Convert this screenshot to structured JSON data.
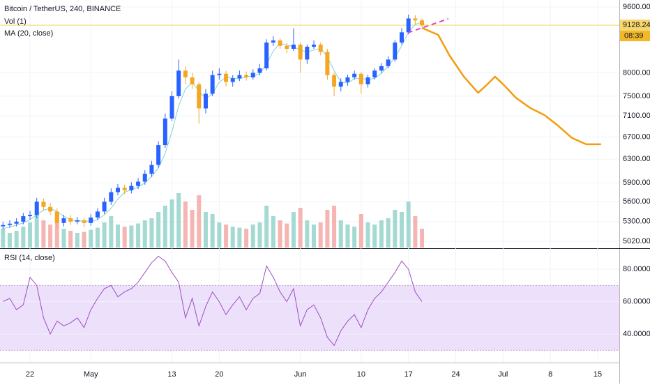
{
  "chart_data": {
    "type": "candlestick",
    "title": "Bitcoin / TetherUS, 240, BINANCE",
    "x": [
      108,
      109,
      110,
      111,
      112,
      113,
      114,
      115,
      116,
      117,
      118,
      119,
      120,
      121,
      122,
      123,
      124,
      125,
      126,
      127,
      128,
      129,
      130,
      131,
      132,
      133,
      134,
      135,
      136,
      137,
      138,
      139,
      140,
      141,
      142,
      143,
      144,
      145,
      146,
      147,
      148,
      149,
      150,
      151,
      152,
      153,
      154,
      155,
      156,
      157,
      158,
      159,
      160,
      161,
      162,
      163,
      164,
      165,
      166,
      167,
      168,
      169,
      170
    ],
    "open": [
      5230,
      5250,
      5270,
      5300,
      5380,
      5400,
      5600,
      5520,
      5450,
      5280,
      5350,
      5300,
      5320,
      5280,
      5360,
      5450,
      5600,
      5750,
      5820,
      5780,
      5850,
      5920,
      6050,
      6200,
      6550,
      7050,
      7500,
      8050,
      7900,
      7750,
      7250,
      7550,
      7950,
      7980,
      7800,
      7880,
      7950,
      7900,
      8000,
      8100,
      8700,
      8750,
      8620,
      8550,
      8650,
      8300,
      8600,
      8650,
      8480,
      7950,
      7700,
      7800,
      7900,
      7980,
      7750,
      7900,
      8050,
      8150,
      8300,
      8700,
      8950,
      9300,
      9250
    ],
    "high": [
      5300,
      5320,
      5350,
      5430,
      5460,
      5660,
      5650,
      5580,
      5500,
      5400,
      5400,
      5370,
      5360,
      5410,
      5500,
      5660,
      5810,
      5880,
      5870,
      5910,
      5980,
      6110,
      6270,
      6620,
      7150,
      7600,
      8300,
      8150,
      8000,
      7800,
      7650,
      8050,
      8100,
      8050,
      7950,
      8050,
      8030,
      8080,
      8200,
      8780,
      8850,
      8800,
      8680,
      9050,
      8700,
      8650,
      8750,
      8700,
      8550,
      8000,
      7880,
      7960,
      8050,
      8020,
      7960,
      8100,
      8220,
      8380,
      8760,
      9050,
      9400,
      9380,
      9300
    ],
    "low": [
      5190,
      5210,
      5230,
      5260,
      5330,
      5350,
      5460,
      5400,
      5200,
      5230,
      5250,
      5260,
      5220,
      5240,
      5320,
      5410,
      5550,
      5700,
      5720,
      5730,
      5800,
      5870,
      6000,
      6150,
      6500,
      7000,
      7450,
      7750,
      7650,
      6950,
      7150,
      7500,
      7850,
      7700,
      7700,
      7820,
      7830,
      7850,
      7950,
      8050,
      8620,
      8550,
      8450,
      8500,
      8000,
      8200,
      8550,
      8400,
      7850,
      7500,
      7600,
      7720,
      7850,
      7550,
      7680,
      7850,
      8000,
      8100,
      8250,
      8650,
      8900,
      9150,
      9080
    ],
    "close": [
      5250,
      5270,
      5300,
      5380,
      5400,
      5600,
      5520,
      5450,
      5280,
      5350,
      5300,
      5320,
      5280,
      5360,
      5450,
      5600,
      5750,
      5820,
      5780,
      5850,
      5920,
      6050,
      6200,
      6550,
      7050,
      7500,
      8050,
      7900,
      7750,
      7250,
      7550,
      7950,
      7980,
      7800,
      7880,
      7950,
      7900,
      8000,
      8100,
      8700,
      8750,
      8620,
      8550,
      8650,
      8300,
      8600,
      8650,
      8480,
      7950,
      7700,
      7800,
      7900,
      7980,
      7750,
      7900,
      8050,
      8150,
      8300,
      8700,
      8950,
      9300,
      9250,
      9128.24
    ],
    "up_color": "#2962ff",
    "down_color": "#f5a623",
    "log": true,
    "ylim": [
      4933,
      9787
    ],
    "yticks": [
      {
        "value": 5020,
        "label": "5020.00"
      },
      {
        "value": 5300,
        "label": "5300.00"
      },
      {
        "value": 5600,
        "label": "5600.00"
      },
      {
        "value": 5900,
        "label": "5900.00"
      },
      {
        "value": 6300,
        "label": "6300.00"
      },
      {
        "value": 6700,
        "label": "6700.00"
      },
      {
        "value": 7100,
        "label": "7100.00"
      },
      {
        "value": 7500,
        "label": "7500.00"
      },
      {
        "value": 8000,
        "label": "8000.00"
      },
      {
        "value": 9600,
        "label": "9600.00"
      }
    ],
    "xlim": [
      107.56,
      199.2
    ],
    "xticks": [
      {
        "value": 112,
        "label": "22"
      },
      {
        "value": 121,
        "label": "May"
      },
      {
        "value": 133,
        "label": "13"
      },
      {
        "value": 140,
        "label": "20"
      },
      {
        "value": 152,
        "label": "Jun"
      },
      {
        "value": 161,
        "label": "10"
      },
      {
        "value": 168,
        "label": "17"
      },
      {
        "value": 175,
        "label": "24"
      },
      {
        "value": 182,
        "label": "Jul"
      },
      {
        "value": 189,
        "label": "8"
      },
      {
        "value": 196,
        "label": "15"
      }
    ],
    "last_price": 9128.24,
    "countdown": "08:39",
    "price_line_color": "#f0d860",
    "ma": {
      "name": "MA (20, close)",
      "color": "#7fd3d0",
      "values": [
        5200,
        5220,
        5250,
        5280,
        5330,
        5400,
        5470,
        5500,
        5450,
        5380,
        5330,
        5310,
        5310,
        5300,
        5330,
        5400,
        5500,
        5640,
        5750,
        5790,
        5830,
        5900,
        6000,
        6150,
        6400,
        6800,
        7300,
        7650,
        7800,
        7600,
        7450,
        7550,
        7800,
        7900,
        7880,
        7870,
        7910,
        7930,
        7980,
        8200,
        8500,
        8680,
        8640,
        8600,
        8520,
        8480,
        8520,
        8560,
        8360,
        8050,
        7800,
        7780,
        7870,
        7880,
        7850,
        7880,
        7990,
        8150,
        8350,
        8620,
        8950,
        9150,
        9200
      ]
    },
    "volume": {
      "name": "Vol (1)",
      "ylim": [
        0,
        300
      ],
      "up_color": "#8fd1c8",
      "down_color": "#f2a3a0",
      "values": [
        90,
        70,
        80,
        100,
        120,
        160,
        130,
        110,
        140,
        90,
        80,
        70,
        75,
        85,
        95,
        120,
        150,
        110,
        100,
        105,
        115,
        130,
        140,
        170,
        200,
        230,
        260,
        220,
        180,
        250,
        170,
        160,
        120,
        110,
        100,
        95,
        90,
        110,
        120,
        200,
        150,
        130,
        115,
        170,
        190,
        130,
        110,
        120,
        180,
        200,
        130,
        110,
        100,
        160,
        120,
        110,
        130,
        140,
        180,
        170,
        220,
        150,
        90
      ]
    },
    "forecast": {
      "color": "#f29d0e",
      "x": [
        170.0,
        172.4,
        174.1,
        176.2,
        178.3,
        179.8,
        180.8,
        181.9,
        183.9,
        186.0,
        188.1,
        190.1,
        192.2,
        194.3,
        196.5
      ],
      "values": [
        9060,
        8887,
        8387,
        7916,
        7570,
        7767,
        7916,
        7767,
        7468,
        7259,
        7120,
        6916,
        6680,
        6565,
        6565
      ]
    },
    "trend_line": {
      "color": "#e040d0",
      "x": [
        167.9,
        173.9
      ],
      "values": [
        8939,
        9290
      ]
    },
    "rsi": {
      "name": "RSI (14, close)",
      "color": "#9c4fc0",
      "band_color": "#ede0fb",
      "ylim": [
        22.4,
        92.5
      ],
      "yticks": [
        {
          "value": 40,
          "label": "40.0000"
        },
        {
          "value": 60,
          "label": "60.0000"
        },
        {
          "value": 80,
          "label": "80.0000"
        }
      ],
      "band": [
        30,
        70
      ],
      "values": [
        60,
        62,
        55,
        58,
        75,
        70,
        50,
        40,
        48,
        45,
        47,
        50,
        44,
        55,
        62,
        68,
        70,
        63,
        66,
        68,
        72,
        78,
        84,
        88,
        85,
        78,
        72,
        50,
        62,
        45,
        57,
        66,
        60,
        52,
        58,
        63,
        55,
        62,
        65,
        82,
        75,
        66,
        60,
        68,
        45,
        55,
        58,
        50,
        38,
        33,
        42,
        48,
        52,
        44,
        55,
        62,
        66,
        72,
        78,
        85,
        80,
        66,
        60
      ]
    }
  }
}
